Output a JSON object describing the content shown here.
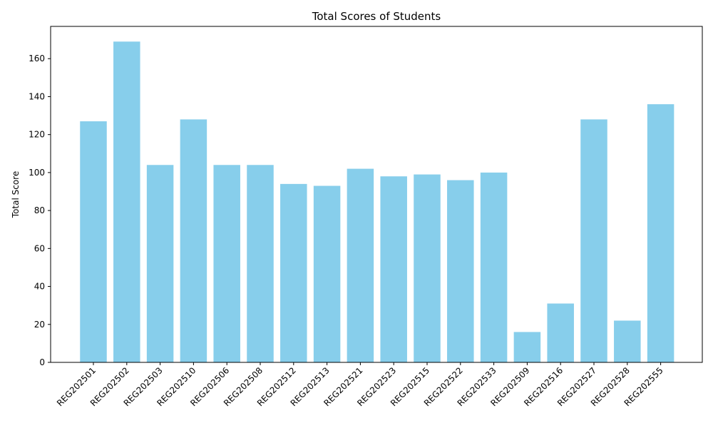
{
  "chart_data": {
    "type": "bar",
    "title": "Total Scores of Students",
    "xlabel": "",
    "ylabel": "Total Score",
    "categories": [
      "REG202501",
      "REG202502",
      "REG202503",
      "REG202510",
      "REG202506",
      "REG202508",
      "REG202512",
      "REG202513",
      "REG202521",
      "REG202523",
      "REG202515",
      "REG202522",
      "REG202533",
      "REG202509",
      "REG202516",
      "REG202527",
      "REG202528",
      "REG202555"
    ],
    "values": [
      127,
      169,
      104,
      128,
      104,
      104,
      94,
      93,
      102,
      98,
      99,
      96,
      100,
      16,
      31,
      128,
      22,
      136
    ],
    "ylim": [
      0,
      177
    ],
    "yticks": [
      0,
      20,
      40,
      60,
      80,
      100,
      120,
      140,
      160
    ],
    "bar_color": "#87ceeb",
    "grid": false,
    "xtick_rotation": 45
  }
}
